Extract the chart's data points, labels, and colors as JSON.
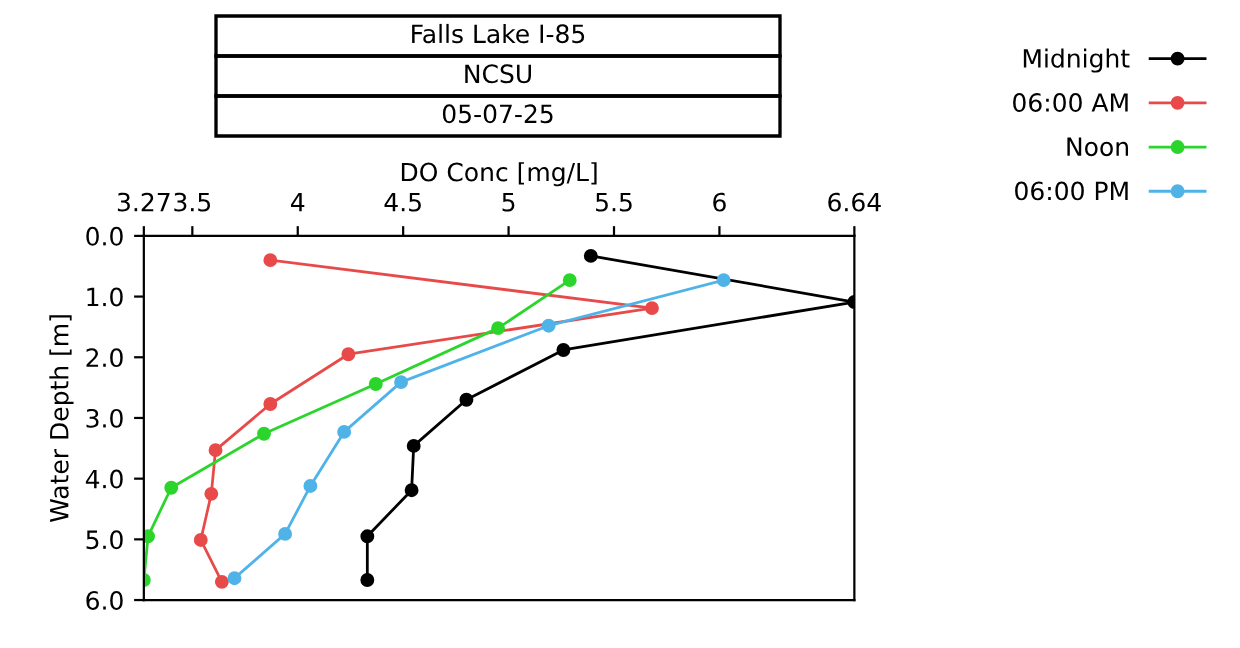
{
  "chart_data": {
    "type": "line",
    "title": "Falls Lake I-85",
    "subtitle": "NCSU",
    "annotations": [
      "05-07-25"
    ],
    "xlabel": "DO Conc [mg/L]",
    "ylabel": "Water Depth [m]",
    "xlim": [
      3.27,
      6.64
    ],
    "xticks": [
      3.27,
      3.5,
      4,
      4.5,
      5,
      5.5,
      6,
      6.64
    ],
    "ylim": [
      6.0,
      0.0
    ],
    "yticks": [
      {
        "value": 0,
        "label": "0.0"
      },
      {
        "value": 1,
        "label": "1.0"
      },
      {
        "value": 2,
        "label": "2.0"
      },
      {
        "value": 3,
        "label": "3.0"
      },
      {
        "value": 4,
        "label": "4.0"
      },
      {
        "value": 5,
        "label": "5.0"
      },
      {
        "value": 6,
        "label": "6.0"
      }
    ],
    "grid": false,
    "legend": "right",
    "marker": "circle",
    "line_style": "solid",
    "series": [
      {
        "name": "Midnight",
        "color": "#000000",
        "x": [
          5.39,
          6.64,
          5.26,
          4.8,
          4.55,
          4.54,
          4.33,
          4.33
        ],
        "values": [
          0.33,
          1.09,
          1.88,
          2.7,
          3.46,
          4.19,
          4.95,
          5.67
        ]
      },
      {
        "name": "06:00 AM",
        "color": "#e84a4a",
        "x": [
          3.87,
          5.68,
          4.24,
          3.87,
          3.61,
          3.59,
          3.54,
          3.64
        ],
        "values": [
          0.4,
          1.19,
          1.95,
          2.77,
          3.53,
          4.25,
          5.01,
          5.7
        ]
      },
      {
        "name": "Noon",
        "color": "#2bd52b",
        "x": [
          5.29,
          4.95,
          4.37,
          3.84,
          3.4,
          3.29,
          3.27
        ],
        "values": [
          0.73,
          1.52,
          2.44,
          3.26,
          4.15,
          4.95,
          5.67
        ]
      },
      {
        "name": "06:00 PM",
        "color": "#4fb3e8",
        "x": [
          6.02,
          5.19,
          4.49,
          4.22,
          4.06,
          3.94,
          3.7
        ],
        "values": [
          0.73,
          1.48,
          2.41,
          3.23,
          4.12,
          4.91,
          5.64
        ]
      }
    ]
  }
}
